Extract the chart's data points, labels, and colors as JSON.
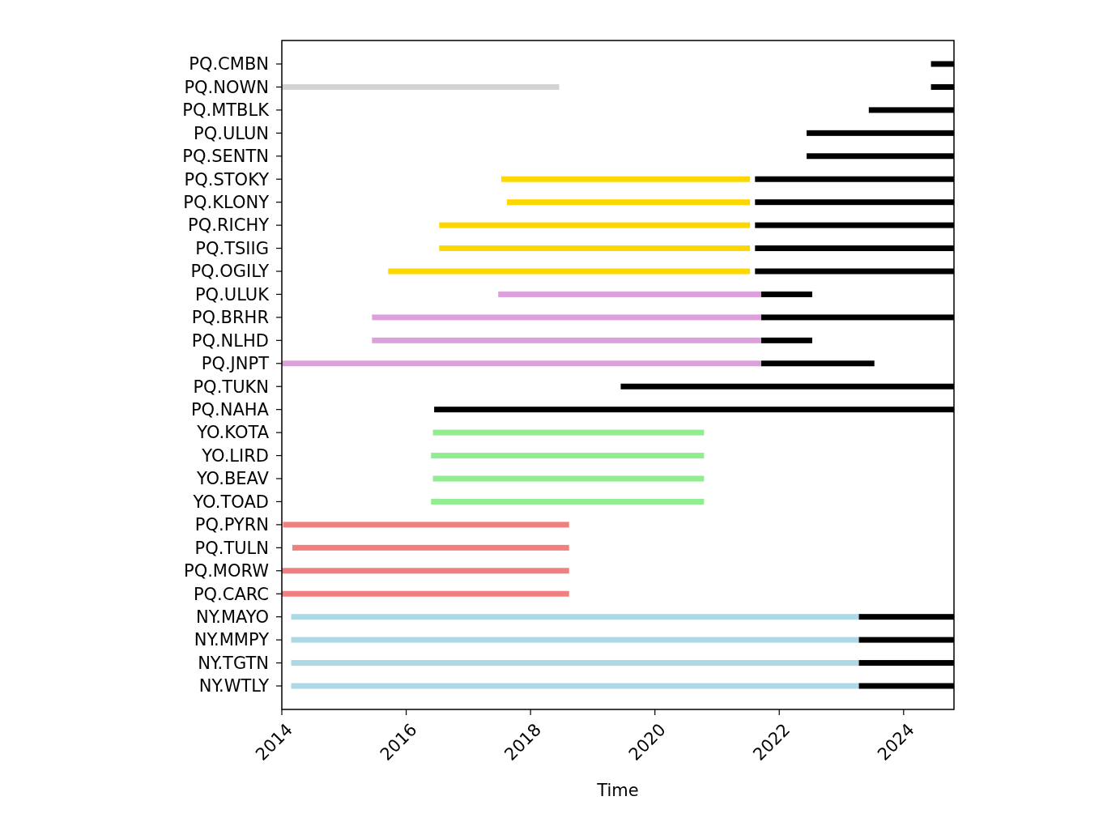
{
  "chart_data": {
    "type": "bar",
    "orientation": "horizontal",
    "xlabel": "Time",
    "categories": [
      "PQ.CMBN",
      "PQ.NOWN",
      "PQ.MTBLK",
      "PQ.ULUN",
      "PQ.SENTN",
      "PQ.STOKY",
      "PQ.KLONY",
      "PQ.RICHY",
      "PQ.TSIIG",
      "PQ.OGILY",
      "PQ.ULUK",
      "PQ.BRHR",
      "PQ.NLHD",
      "PQ.JNPT",
      "PQ.TUKN",
      "PQ.NAHA",
      "YO.KOTA",
      "YO.LIRD",
      "YO.BEAV",
      "YO.TOAD",
      "PQ.PYRN",
      "PQ.TULN",
      "PQ.MORW",
      "PQ.CARC",
      "NY.MAYO",
      "NY.MMPY",
      "NY.TGTN",
      "NY.WTLY"
    ],
    "series": [
      {
        "colors": [
          null,
          "#d3d3d3",
          null,
          null,
          null,
          "#ffd700",
          "#ffd700",
          "#ffd700",
          "#ffd700",
          "#ffd700",
          "#dda0dd",
          "#dda0dd",
          "#dda0dd",
          "#dda0dd",
          null,
          null,
          "#90ee90",
          "#90ee90",
          "#90ee90",
          "#90ee90",
          "#f08080",
          "#f08080",
          "#f08080",
          "#f08080",
          "#add8e6",
          "#add8e6",
          "#add8e6",
          "#add8e6"
        ],
        "base": [
          null,
          2014.0,
          null,
          null,
          null,
          2017.53,
          2017.62,
          2016.53,
          2016.53,
          2015.71,
          2017.48,
          2015.45,
          2015.45,
          2014.0,
          null,
          null,
          2016.43,
          2016.4,
          2016.43,
          2016.4,
          2014.02,
          2014.17,
          2014.0,
          2014.0,
          2014.15,
          2014.15,
          2014.15,
          2014.15
        ],
        "values": [
          null,
          4.46,
          null,
          null,
          null,
          4.0,
          3.91,
          5.0,
          5.0,
          5.82,
          4.23,
          6.26,
          6.26,
          7.71,
          null,
          null,
          4.36,
          4.39,
          4.36,
          4.39,
          4.6,
          4.45,
          4.62,
          4.62,
          9.13,
          9.13,
          9.13,
          9.13
        ]
      },
      {
        "color": "#000000",
        "base": [
          2024.44,
          2024.44,
          2023.44,
          2022.44,
          2022.44,
          2021.61,
          2021.61,
          2021.61,
          2021.61,
          2021.61,
          2021.71,
          2021.71,
          2021.71,
          2021.71,
          2019.45,
          2016.45,
          null,
          null,
          null,
          null,
          null,
          null,
          null,
          null,
          2023.28,
          2023.28,
          2023.28,
          2023.28
        ],
        "values": [
          0.37,
          0.37,
          1.37,
          2.37,
          2.37,
          3.2,
          3.2,
          3.2,
          3.2,
          3.2,
          0.82,
          3.1,
          0.82,
          1.82,
          5.36,
          8.36,
          null,
          null,
          null,
          null,
          null,
          null,
          null,
          null,
          1.53,
          1.53,
          1.53,
          1.53
        ]
      }
    ],
    "xlim": [
      2014,
      2024.81
    ],
    "xticks": [
      2014,
      2016,
      2018,
      2020,
      2022,
      2024
    ]
  }
}
